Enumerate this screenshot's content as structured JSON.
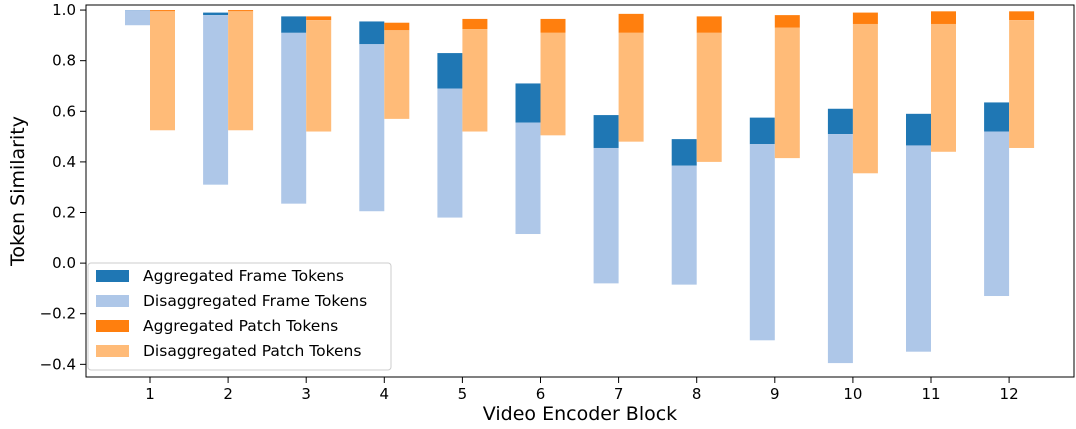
{
  "chart_data": {
    "type": "bar",
    "xlabel": "Video Encoder Block",
    "ylabel": "Token Similarity",
    "ylim": [
      -0.45,
      1.02
    ],
    "yticks": [
      -0.4,
      -0.2,
      0.0,
      0.2,
      0.4,
      0.6,
      0.8,
      1.0
    ],
    "ytick_labels": [
      "−0.4",
      "−0.2",
      "0.0",
      "0.2",
      "0.4",
      "0.6",
      "0.8",
      "1.0"
    ],
    "categories": [
      "1",
      "2",
      "3",
      "4",
      "5",
      "6",
      "7",
      "8",
      "9",
      "10",
      "11",
      "12"
    ],
    "grid": false,
    "legend_position": "lower-left",
    "series": [
      {
        "name": "Aggregated Frame Tokens",
        "color": "#1f77b4",
        "group": "frame",
        "low": [
          1.0,
          0.98,
          0.91,
          0.865,
          0.69,
          0.555,
          0.455,
          0.385,
          0.47,
          0.51,
          0.465,
          0.52
        ],
        "high": [
          1.0,
          0.99,
          0.975,
          0.955,
          0.83,
          0.71,
          0.585,
          0.49,
          0.575,
          0.61,
          0.59,
          0.635
        ]
      },
      {
        "name": "Disaggregated Frame Tokens",
        "color": "#aec7e8",
        "group": "frame",
        "low": [
          0.94,
          0.31,
          0.235,
          0.205,
          0.18,
          0.115,
          -0.08,
          -0.085,
          -0.305,
          -0.395,
          -0.35,
          -0.13
        ],
        "high": [
          1.0,
          0.98,
          0.91,
          0.865,
          0.69,
          0.555,
          0.455,
          0.385,
          0.47,
          0.51,
          0.465,
          0.52
        ]
      },
      {
        "name": "Aggregated Patch Tokens",
        "color": "#ff7f0e",
        "group": "patch",
        "low": [
          0.995,
          0.995,
          0.96,
          0.92,
          0.925,
          0.91,
          0.91,
          0.91,
          0.93,
          0.945,
          0.945,
          0.96
        ],
        "high": [
          1.0,
          1.0,
          0.975,
          0.95,
          0.965,
          0.965,
          0.985,
          0.975,
          0.98,
          0.99,
          0.995,
          0.995
        ]
      },
      {
        "name": "Disaggregated Patch Tokens",
        "color": "#ffbb78",
        "group": "patch",
        "low": [
          0.525,
          0.525,
          0.52,
          0.57,
          0.52,
          0.505,
          0.48,
          0.4,
          0.415,
          0.355,
          0.44,
          0.455
        ],
        "high": [
          0.995,
          0.995,
          0.96,
          0.92,
          0.925,
          0.91,
          0.91,
          0.91,
          0.93,
          0.945,
          0.945,
          0.96
        ]
      }
    ]
  }
}
